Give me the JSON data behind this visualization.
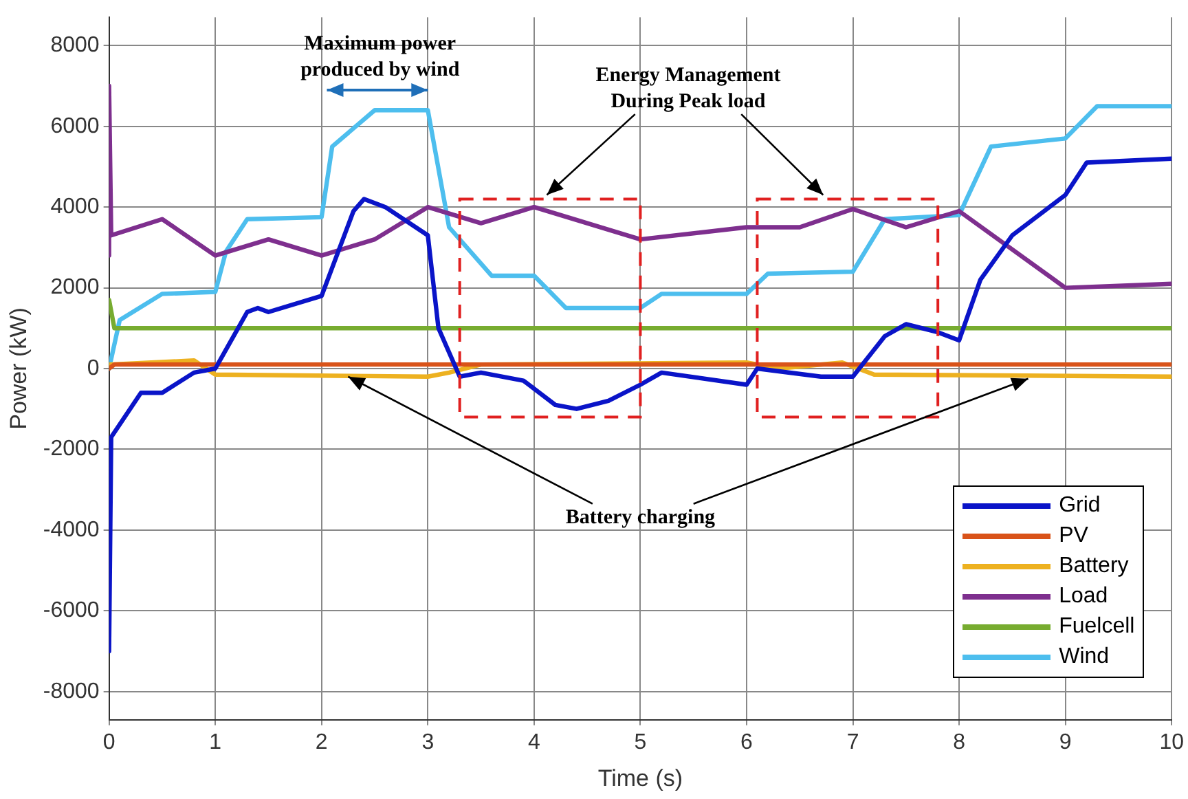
{
  "chart_data": {
    "type": "line",
    "xlabel": "Time (s)",
    "ylabel": "Power (kW)",
    "xlim": [
      0,
      10
    ],
    "xticks": [
      0,
      1,
      2,
      3,
      4,
      5,
      6,
      7,
      8,
      9,
      10
    ],
    "ylim": [
      -8700,
      8700
    ],
    "yticks": [
      -8000,
      -6000,
      -4000,
      -2000,
      0,
      2000,
      4000,
      6000,
      8000
    ],
    "grid": true,
    "legend": "bottom right",
    "marker": "none",
    "line_style": "solid",
    "annotations": [
      "Maximum power produced by wind",
      "Energy Management During Peak load",
      {
        "text": "Battery charging",
        "x": 2.25,
        "y": -200
      }
    ],
    "series": [
      {
        "name": "Grid",
        "color": "#0a14c8",
        "x": [
          0,
          0.02,
          0.3,
          0.5,
          0.8,
          1,
          1.3,
          1.4,
          1.5,
          2,
          2.3,
          2.4,
          2.6,
          3,
          3.1,
          3.3,
          3.5,
          3.9,
          4.2,
          4.4,
          4.7,
          5,
          5.2,
          6,
          6.1,
          6.7,
          7,
          7.3,
          7.5,
          7.8,
          8,
          8.2,
          8.5,
          9,
          9.2,
          10
        ],
        "values": [
          -7000,
          -1700,
          -600,
          -600,
          -100,
          0,
          1400,
          1500,
          1400,
          1800,
          3900,
          4200,
          4000,
          3300,
          1000,
          -200,
          -100,
          -300,
          -900,
          -1000,
          -800,
          -400,
          -100,
          -400,
          0,
          -200,
          -200,
          800,
          1100,
          900,
          700,
          2200,
          3300,
          4300,
          5100,
          5200
        ]
      },
      {
        "name": "PV",
        "color": "#d95319",
        "x": [
          0,
          0.05,
          10
        ],
        "values": [
          0,
          100,
          100
        ]
      },
      {
        "name": "Battery",
        "color": "#edb120",
        "x": [
          0,
          0.8,
          1,
          3,
          3.2,
          3.5,
          6,
          6.3,
          6.9,
          7.2,
          10
        ],
        "values": [
          100,
          200,
          -150,
          -200,
          -100,
          100,
          150,
          0,
          150,
          -150,
          -200
        ]
      },
      {
        "name": "Load",
        "color": "#7e2f8e",
        "x": [
          0,
          0,
          0.02,
          0.5,
          1,
          1.5,
          2,
          2.5,
          3,
          3.5,
          4,
          5,
          6,
          6.5,
          7,
          7.5,
          8,
          9,
          10
        ],
        "values": [
          2800,
          7000,
          3300,
          3700,
          2800,
          3200,
          2800,
          3200,
          4000,
          3600,
          4000,
          3200,
          3500,
          3500,
          3950,
          3500,
          3900,
          2000,
          2100
        ]
      },
      {
        "name": "Fuelcell",
        "color": "#77ac30",
        "x": [
          0,
          0.05,
          10
        ],
        "values": [
          1700,
          1000,
          1000
        ]
      },
      {
        "name": "Wind",
        "color": "#4dbeee",
        "x": [
          0,
          0.1,
          0.5,
          1,
          1.1,
          1.3,
          2,
          2.1,
          2.5,
          3,
          3.2,
          3.6,
          4,
          4.3,
          5,
          5.2,
          6,
          6.2,
          7,
          7.3,
          8,
          8.3,
          9,
          9.3,
          10
        ],
        "values": [
          0,
          1200,
          1850,
          1900,
          2900,
          3700,
          3750,
          5500,
          6400,
          6400,
          3500,
          2300,
          2300,
          1500,
          1500,
          1850,
          1850,
          2350,
          2400,
          3700,
          3800,
          5500,
          5700,
          6500,
          6500
        ]
      }
    ]
  }
}
